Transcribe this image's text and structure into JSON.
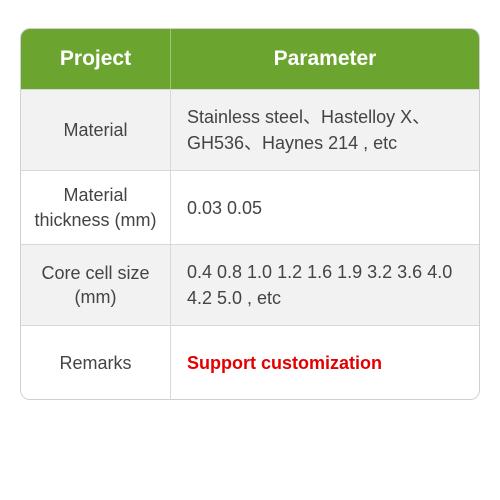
{
  "table": {
    "header_bg": "#6ba52f",
    "header_text_color": "#ffffff",
    "header_font_size": 21,
    "body_font_size": 18,
    "body_text_color": "#444444",
    "row_bg_even": "#f2f2f2",
    "row_bg_odd": "#ffffff",
    "remarks_color": "#e20000",
    "columns": {
      "project": "Project",
      "parameter": "Parameter"
    },
    "rows": [
      {
        "project": "Material",
        "parameter": "Stainless steel、Hastelloy X、GH536、Haynes 214 , etc"
      },
      {
        "project": "Material thickness (mm)",
        "parameter": "0.03  0.05"
      },
      {
        "project": "Core cell size (mm)",
        "parameter": "0.4  0.8  1.0  1.2  1.6  1.9  3.2  3.6  4.0   4.2 5.0 , etc"
      },
      {
        "project": "Remarks",
        "parameter": "Support customization"
      }
    ]
  }
}
